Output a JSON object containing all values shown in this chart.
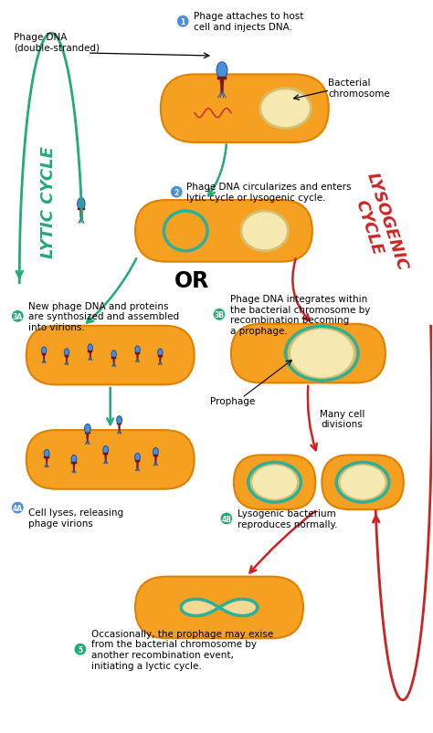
{
  "bg_color": "#ffffff",
  "cell_color": "#f5a020",
  "cell_border": "#e08000",
  "cell_inner": "#e89010",
  "nucleus_color": "#f0e8d0",
  "nucleus_border": "#e0d0a0",
  "prophage_color": "#2db09b",
  "phage_head_color": "#4a90d9",
  "phage_head_dark": "#2255aa",
  "phage_tail_color": "#992222",
  "lytic_color": "#22aa77",
  "lysogenic_color": "#cc2222",
  "badge_lytic": "#4a90d9",
  "badge_lysogenic": "#22aa77",
  "badge_step5": "#22aa77",
  "lytic_cycle_label": "LYTIC CYCLE",
  "lysogenic_cycle_label": "LYSOGENIC\nCYCLE",
  "or_text": "OR",
  "step1_label": "Phage attaches to host\ncell and injects DNA.",
  "step2_label": "Phage DNA circularizes and enters\nlytic cycle or lysogenic cycle.",
  "step3a_label": "New phage DNA and proteins\nare synthosized and assembled\ninto virions.",
  "step3b_label": "Phage DNA integrates within\nthe bacterial chromosome by\nrecombination becoming\na prophage.",
  "step4a_label": "Cell lyses, releasing\nphage virions",
  "step4b_label": "Lysogenic bacterium\nreproduces normally.",
  "step5_label": "Occasionally, the prophage may exise\nfrom the bacterial chromosome by\nanother recombination event,\ninitiating a lyctic cycle.",
  "phage_dna_label": "Phage DNA\n(double-stranded)",
  "bacterial_chr_label": "Bacterial\nchromosome",
  "prophage_label": "Prophage",
  "many_cell_div_label": "Many cell\ndivisions",
  "fs": 7.5,
  "fs_cycle": 13
}
